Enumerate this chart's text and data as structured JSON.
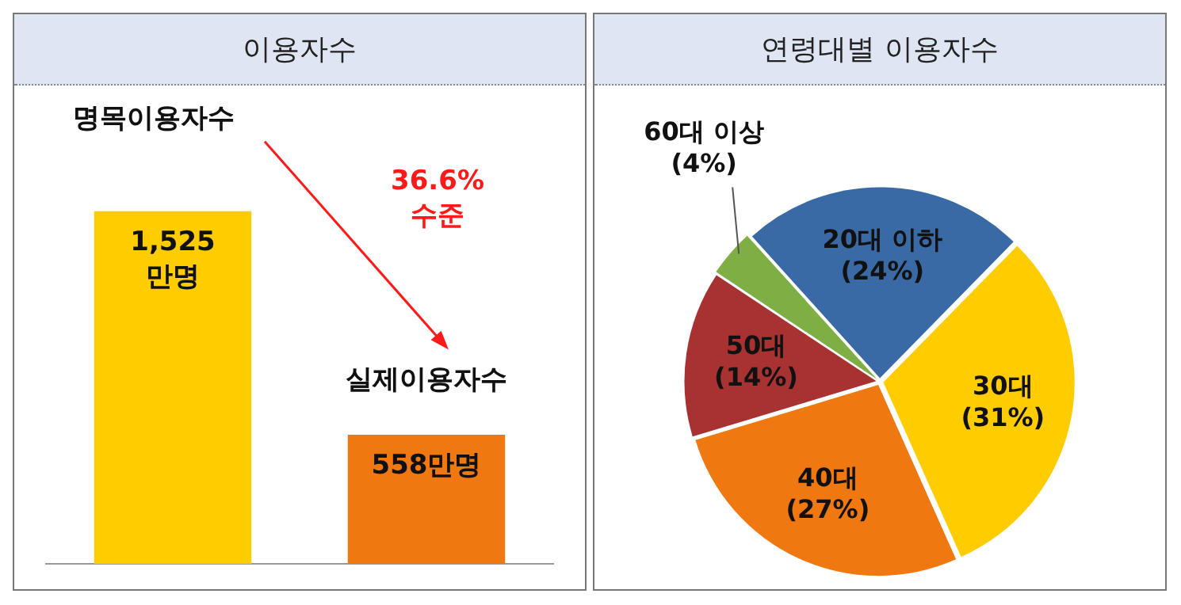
{
  "chart_data": [
    {
      "type": "bar",
      "title": "이용자수",
      "categories": [
        null,
        null
      ],
      "stacked": true,
      "series": [
        {
          "name": "명목이용자수",
          "color": "#ffcc00",
          "values": [
            1525,
            null
          ],
          "value_labels": [
            "1,525\n만명",
            null
          ]
        },
        {
          "name": "실제이용자수",
          "color": "#f07810",
          "values": [
            null,
            558
          ],
          "value_labels": [
            null,
            "558만명"
          ]
        }
      ],
      "annotations": [
        "36.6%\n수준"
      ]
    },
    {
      "type": "pie",
      "title": "연령대별 이용자수",
      "categories": [
        "20대 이하",
        "30대",
        "40대",
        "50대",
        "60대 이상"
      ],
      "values": [
        24,
        31,
        27,
        14,
        4
      ],
      "colors": [
        "#3a6aa5",
        "#ffcc00",
        "#f07810",
        "#a83232",
        "#7fae45"
      ],
      "value_labels": [
        "(24%)",
        "(31%)",
        "(27%)",
        "(14%)",
        "(4%)"
      ]
    }
  ]
}
